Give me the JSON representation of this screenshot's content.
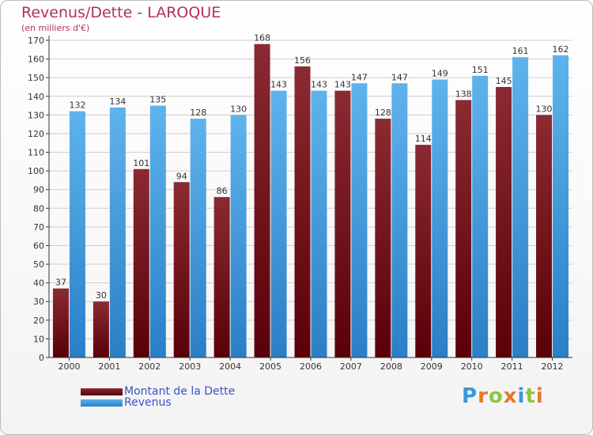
{
  "header": {
    "title": "Revenus/Dette - LAROQUE",
    "subtitle": "(en milliers d'€)"
  },
  "colors": {
    "dette": "#6e0f13",
    "revenus": "#3a97de",
    "axis": "#333333",
    "grid": "#cfcfcf",
    "text": "#333333"
  },
  "chart_data": {
    "type": "bar",
    "title": "Revenus/Dette - LAROQUE",
    "subtitle": "(en milliers d'€)",
    "categories": [
      "2000",
      "2001",
      "2002",
      "2003",
      "2004",
      "2005",
      "2006",
      "2007",
      "2008",
      "2009",
      "2010",
      "2011",
      "2012"
    ],
    "series": [
      {
        "name": "Montant de la Dette",
        "values": [
          37,
          30,
          101,
          94,
          86,
          168,
          156,
          143,
          128,
          114,
          138,
          145,
          130
        ]
      },
      {
        "name": "Revenus",
        "values": [
          132,
          134,
          135,
          128,
          130,
          143,
          143,
          147,
          147,
          149,
          151,
          161,
          162
        ]
      }
    ],
    "ylim": [
      0,
      170
    ],
    "yticks": [
      0,
      10,
      20,
      30,
      40,
      50,
      60,
      70,
      80,
      90,
      100,
      110,
      120,
      130,
      140,
      150,
      160,
      170
    ],
    "grid": true,
    "legend": "bottom-left"
  },
  "logo": {
    "letters": [
      {
        "ch": "P",
        "color": "#3a97de"
      },
      {
        "ch": "r",
        "color": "#e8762a"
      },
      {
        "ch": "o",
        "color": "#8cc63f"
      },
      {
        "ch": "x",
        "color": "#e8762a"
      },
      {
        "ch": "i",
        "color": "#3a97de"
      },
      {
        "ch": "t",
        "color": "#8cc63f"
      },
      {
        "ch": "i",
        "color": "#e8762a"
      }
    ]
  }
}
